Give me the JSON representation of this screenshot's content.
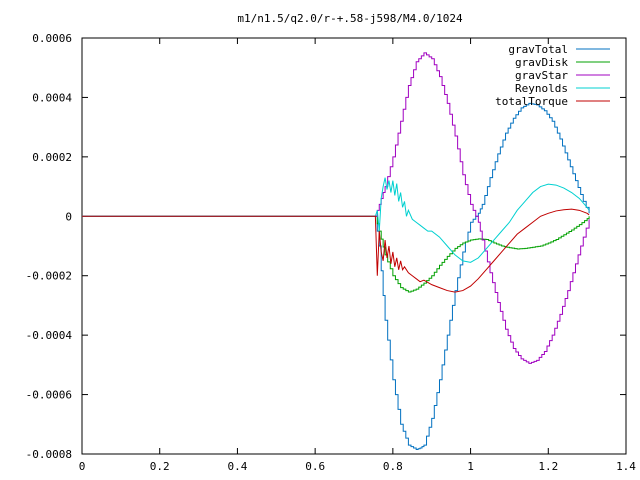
{
  "chart_data": {
    "type": "line",
    "title": "m1/n1.5/q2.0/r-+.58-j598/M4.0/1024",
    "xlabel": "",
    "ylabel": "",
    "xlim": [
      0,
      1.4
    ],
    "ylim": [
      -0.0008,
      0.0006
    ],
    "x_ticks": [
      0,
      0.2,
      0.4,
      0.6,
      0.8,
      1,
      1.2,
      1.4
    ],
    "x_tick_labels": [
      "0",
      "0.2",
      "0.4",
      "0.6",
      "0.8",
      "1",
      "1.2",
      "1.4"
    ],
    "y_ticks": [
      0.0006,
      0.0004,
      0.0002,
      0,
      -0.0002,
      -0.0004,
      -0.0006,
      -0.0008
    ],
    "y_tick_labels": [
      "0.0006",
      "0.0004",
      "0.0002",
      "0",
      "-0.0002",
      "-0.0004",
      "-0.0006",
      "-0.0008"
    ],
    "grid": false,
    "legend_position": "top-right",
    "series": [
      {
        "name": "gravTotal",
        "color": "#0070c0",
        "style": "steps",
        "x": [
          0.0,
          0.755,
          0.765,
          0.78,
          0.8,
          0.82,
          0.84,
          0.86,
          0.87,
          0.88,
          0.9,
          0.92,
          0.94,
          0.96,
          0.98,
          1.0,
          1.02,
          1.03,
          1.05,
          1.07,
          1.09,
          1.11,
          1.13,
          1.15,
          1.17,
          1.19,
          1.21,
          1.23,
          1.25,
          1.27,
          1.29,
          1.305
        ],
        "y": [
          0,
          0,
          -0.0001,
          -0.00035,
          -0.00055,
          -0.0007,
          -0.00077,
          -0.000785,
          -0.00078,
          -0.00077,
          -0.00068,
          -0.00055,
          -0.0004,
          -0.00025,
          -0.00012,
          -2e-05,
          1e-05,
          4e-05,
          0.00013,
          0.00021,
          0.00028,
          0.00033,
          0.000365,
          0.00038,
          0.000375,
          0.000355,
          0.00032,
          0.00026,
          0.00019,
          0.00012,
          5e-05,
          1e-05
        ]
      },
      {
        "name": "gravDisk",
        "color": "#00a000",
        "style": "steps",
        "x": [
          0.0,
          0.755,
          0.765,
          0.78,
          0.8,
          0.82,
          0.84,
          0.86,
          0.88,
          0.9,
          0.92,
          0.94,
          0.96,
          0.98,
          1.0,
          1.02,
          1.04,
          1.06,
          1.08,
          1.1,
          1.12,
          1.14,
          1.16,
          1.18,
          1.2,
          1.22,
          1.24,
          1.26,
          1.28,
          1.3,
          1.305
        ],
        "y": [
          0,
          0,
          -5e-05,
          -0.00013,
          -0.0002,
          -0.00024,
          -0.000255,
          -0.000245,
          -0.000225,
          -0.0002,
          -0.000165,
          -0.000135,
          -0.000108,
          -9e-05,
          -8e-05,
          -7.6e-05,
          -7.8e-05,
          -9e-05,
          -0.0001,
          -0.000106,
          -0.00011,
          -0.000108,
          -0.000104,
          -0.0001,
          -9e-05,
          -7.8e-05,
          -6.2e-05,
          -4.6e-05,
          -2.8e-05,
          -8e-06,
          0
        ]
      },
      {
        "name": "gravStar",
        "color": "#a000c0",
        "style": "steps",
        "x": [
          0.0,
          0.755,
          0.765,
          0.78,
          0.8,
          0.82,
          0.84,
          0.86,
          0.88,
          0.9,
          0.92,
          0.94,
          0.96,
          0.98,
          1.0,
          1.02,
          1.03,
          1.05,
          1.07,
          1.09,
          1.11,
          1.13,
          1.15,
          1.17,
          1.19,
          1.21,
          1.23,
          1.25,
          1.27,
          1.29,
          1.305
        ],
        "y": [
          0,
          0,
          4e-05,
          0.0001,
          0.0002,
          0.00032,
          0.00044,
          0.00052,
          0.00055,
          0.00053,
          0.00047,
          0.00038,
          0.00027,
          0.00014,
          4e-05,
          -2e-05,
          -8e-05,
          -0.00019,
          -0.00029,
          -0.00038,
          -0.000445,
          -0.00048,
          -0.000495,
          -0.000485,
          -0.000455,
          -0.0004,
          -0.00033,
          -0.00025,
          -0.00016,
          -7e-05,
          -1e-05
        ]
      },
      {
        "name": "Reynolds",
        "color": "#00d0d0",
        "style": "noisy",
        "x": [
          0.0,
          0.755,
          0.76,
          0.765,
          0.77,
          0.775,
          0.78,
          0.785,
          0.79,
          0.795,
          0.8,
          0.805,
          0.81,
          0.815,
          0.82,
          0.825,
          0.83,
          0.835,
          0.84,
          0.85,
          0.86,
          0.87,
          0.88,
          0.89,
          0.9,
          0.92,
          0.94,
          0.96,
          0.98,
          1.0,
          1.02,
          1.04,
          1.06,
          1.08,
          1.1,
          1.12,
          1.14,
          1.16,
          1.18,
          1.2,
          1.22,
          1.24,
          1.26,
          1.28,
          1.3,
          1.305
        ],
        "y": [
          0,
          0,
          2e-05,
          -5e-05,
          6e-05,
          0.0001,
          0.00013,
          9e-05,
          0.00012,
          8e-05,
          0.00012,
          7e-05,
          0.00011,
          5e-05,
          8e-05,
          3e-05,
          5e-05,
          0.0,
          2e-05,
          -1e-05,
          -2e-05,
          -3e-05,
          -4e-05,
          -5e-05,
          -5e-05,
          -7e-05,
          -0.0001,
          -0.00013,
          -0.00015,
          -0.000155,
          -0.00014,
          -0.00011,
          -8e-05,
          -5e-05,
          -2e-05,
          2e-05,
          5e-05,
          8e-05,
          0.0001,
          0.000108,
          0.000105,
          9.5e-05,
          8e-05,
          6e-05,
          3e-05,
          2e-05
        ]
      },
      {
        "name": "totalTorque",
        "color": "#c00000",
        "style": "noisy",
        "x": [
          0.0,
          0.755,
          0.76,
          0.765,
          0.77,
          0.775,
          0.78,
          0.785,
          0.79,
          0.795,
          0.8,
          0.805,
          0.81,
          0.815,
          0.82,
          0.825,
          0.83,
          0.84,
          0.85,
          0.86,
          0.87,
          0.88,
          0.9,
          0.92,
          0.94,
          0.96,
          0.98,
          1.0,
          1.02,
          1.04,
          1.06,
          1.08,
          1.1,
          1.12,
          1.14,
          1.16,
          1.18,
          1.2,
          1.22,
          1.24,
          1.26,
          1.28,
          1.3,
          1.305
        ],
        "y": [
          0,
          0,
          -0.0002,
          -5e-05,
          -0.00012,
          -0.00015,
          -8e-05,
          -0.00014,
          -0.0001,
          -0.00016,
          -0.00012,
          -0.00017,
          -0.00014,
          -0.00018,
          -0.00015,
          -0.00018,
          -0.00017,
          -0.00019,
          -0.0002,
          -0.00021,
          -0.00022,
          -0.000215,
          -0.00023,
          -0.00024,
          -0.00025,
          -0.000255,
          -0.00025,
          -0.000235,
          -0.00021,
          -0.00018,
          -0.00015,
          -0.00012,
          -9e-05,
          -6e-05,
          -4e-05,
          -2e-05,
          0.0,
          1e-05,
          1.8e-05,
          2.2e-05,
          2.4e-05,
          2e-05,
          1e-05,
          5e-06
        ]
      }
    ]
  }
}
